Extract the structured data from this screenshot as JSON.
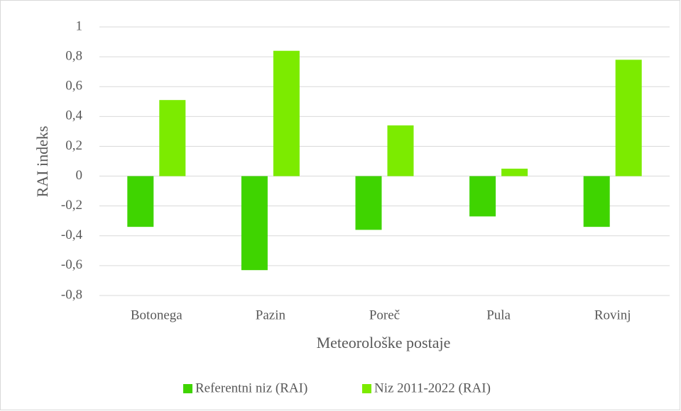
{
  "chart_data": {
    "type": "bar",
    "categories": [
      "Botonega",
      "Pazin",
      "Poreč",
      "Pula",
      "Rovinj"
    ],
    "series": [
      {
        "name": "Referentni niz (RAI)",
        "color": "#3fd400",
        "values": [
          -0.34,
          -0.63,
          -0.36,
          -0.27,
          -0.34
        ]
      },
      {
        "name": "Niz 2011-2022 (RAI)",
        "color": "#7ceb00",
        "values": [
          0.51,
          0.84,
          0.34,
          0.05,
          0.78
        ]
      }
    ],
    "xlabel": "Meteorološke postaje",
    "ylabel": "RAI indeks",
    "ylim": [
      -0.8,
      1
    ],
    "yticks": [
      {
        "value": -0.8,
        "label": "-0,8"
      },
      {
        "value": -0.6,
        "label": "-0,6"
      },
      {
        "value": -0.4,
        "label": "-0,4"
      },
      {
        "value": -0.2,
        "label": "-0,2"
      },
      0,
      {
        "value": 0.2,
        "label": "0,2"
      },
      {
        "value": 0.4,
        "label": "0,4"
      },
      {
        "value": 0.6,
        "label": "0,6"
      },
      {
        "value": 0.8,
        "label": "0,8"
      },
      1
    ],
    "grid": true,
    "legend": "bottom"
  }
}
